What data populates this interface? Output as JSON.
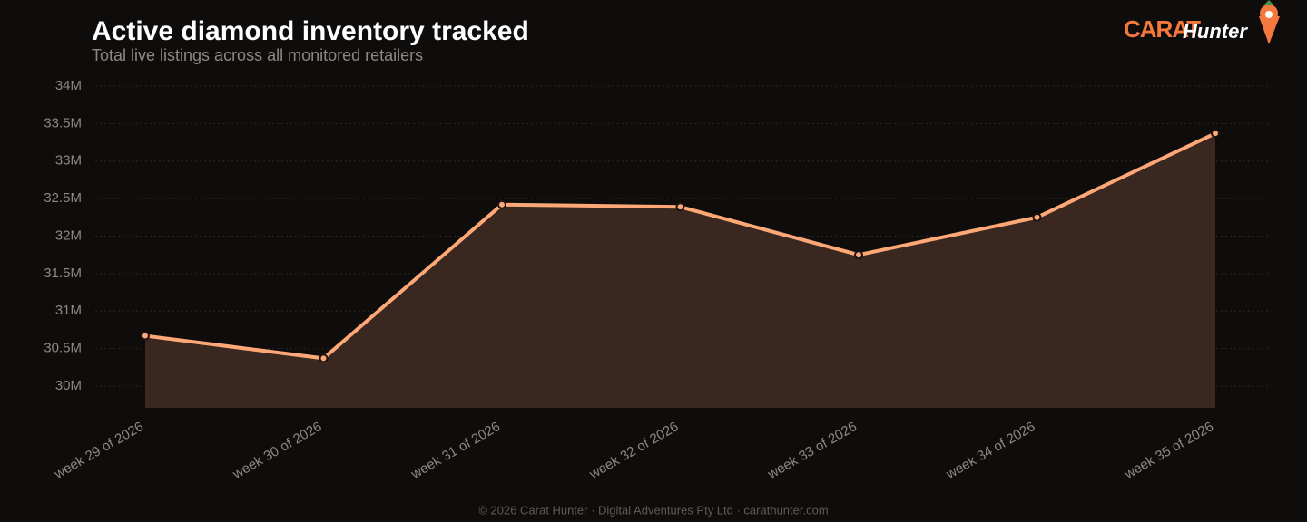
{
  "chart_data": {
    "type": "line",
    "title": "Active diamond inventory tracked",
    "subtitle": "Total live listings across all monitored retailers",
    "categories": [
      "week 29 of 2026",
      "week 30 of 2026",
      "week 31 of 2026",
      "week 32 of 2026",
      "week 33 of 2026",
      "week 34 of 2026",
      "week 35 of 2026"
    ],
    "values": [
      30670000,
      30370000,
      32420000,
      32390000,
      31750000,
      32250000,
      33370000
    ],
    "color": "#ffa877",
    "area_color": "#3a2820",
    "ylim": [
      29710000,
      34000000
    ],
    "yticks": [
      {
        "value": 30000000,
        "label": "30M"
      },
      {
        "value": 30500000,
        "label": "30.5M"
      },
      {
        "value": 31000000,
        "label": "31M"
      },
      {
        "value": 31500000,
        "label": "31.5M"
      },
      {
        "value": 32000000,
        "label": "32M"
      },
      {
        "value": 32500000,
        "label": "32.5M"
      },
      {
        "value": 33000000,
        "label": "33M"
      },
      {
        "value": 33500000,
        "label": "33.5M"
      },
      {
        "value": 34000000,
        "label": "34M"
      }
    ],
    "grid": true
  },
  "logo": {
    "brand": "CARAT",
    "name": "Hunter"
  },
  "footer": "© 2026 Carat Hunter · Digital Adventures Pty Ltd · carathunter.com"
}
